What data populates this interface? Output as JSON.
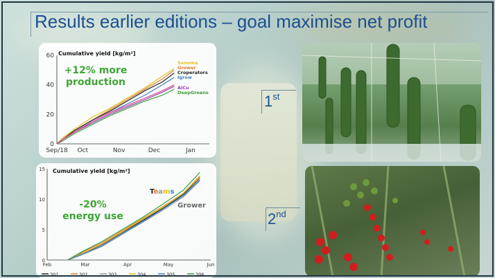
{
  "slide": {
    "title": "Results earlier editions – goal maximise net profit",
    "rank1": "1",
    "rank1_sup": "st",
    "rank2": "2",
    "rank2_sup": "nd",
    "photo1_icon": "cucumber-greenhouse-photo",
    "photo2_icon": "cherry-tomato-greenhouse-photo"
  },
  "chart_data": [
    {
      "type": "line",
      "title": "Cumulative yield [kg/m²]",
      "annotation": "+12% more production",
      "annotation_lines": [
        "+12% more",
        "production"
      ],
      "xlabel": "",
      "ylabel": "",
      "ylim": [
        0,
        60
      ],
      "yticks": [
        0,
        20,
        40,
        60
      ],
      "xlim": [
        0,
        130
      ],
      "xticks": [
        {
          "label": "Sep/18",
          "x": 0
        },
        {
          "label": "Oct",
          "x": 22
        },
        {
          "label": "Nov",
          "x": 53
        },
        {
          "label": "Dec",
          "x": 83
        },
        {
          "label": "Jan",
          "x": 114
        }
      ],
      "grid": false,
      "legend": "top-right",
      "series": [
        {
          "name": "Sonoma",
          "color": "#e0c21c",
          "x": [
            0,
            5,
            15,
            30,
            45,
            60,
            75,
            90,
            100
          ],
          "values": [
            0,
            4,
            10,
            18,
            24,
            31,
            38,
            46,
            51
          ]
        },
        {
          "name": "Grower",
          "color": "#e07b2c",
          "x": [
            0,
            5,
            15,
            30,
            45,
            60,
            75,
            90,
            100
          ],
          "values": [
            0,
            3,
            9,
            16,
            23,
            30,
            37,
            44,
            50
          ]
        },
        {
          "name": "Croperators",
          "color": "#222222",
          "x": [
            0,
            5,
            15,
            30,
            45,
            60,
            75,
            90,
            100
          ],
          "values": [
            0,
            3,
            9,
            16,
            22,
            29,
            36,
            42,
            48
          ]
        },
        {
          "name": "Igrow",
          "color": "#3f7fc4",
          "x": [
            0,
            5,
            15,
            30,
            45,
            60,
            75,
            90,
            100
          ],
          "values": [
            0,
            3,
            8,
            15,
            21,
            27,
            33,
            40,
            45
          ]
        },
        {
          "name": "AiCu",
          "color": "#8e3fb0",
          "x": [
            0,
            5,
            15,
            30,
            45,
            60,
            75,
            90,
            100
          ],
          "values": [
            0,
            3,
            8,
            14,
            20,
            25,
            30,
            35,
            39
          ]
        },
        {
          "name": "DeepGreens",
          "color": "#3e9a3a",
          "x": [
            0,
            5,
            15,
            30,
            45,
            60,
            75,
            90,
            100
          ],
          "values": [
            0,
            2,
            7,
            13,
            19,
            24,
            29,
            33,
            37
          ]
        },
        {
          "name": "",
          "color": "#e0468c",
          "x": [
            0,
            5,
            15,
            30,
            45,
            60,
            75,
            90,
            100
          ],
          "values": [
            0,
            3,
            8,
            15,
            21,
            26,
            31,
            36,
            40
          ]
        }
      ]
    },
    {
      "type": "line",
      "title": "Cumulative yield [kg/m²]",
      "annotation": "-20% energy use",
      "annotation_lines": [
        "-20%",
        "energy use"
      ],
      "label_teams": "Teams",
      "label_grower": "Grower",
      "xlabel": "",
      "ylabel": "",
      "ylim": [
        0,
        15
      ],
      "yticks": [
        0,
        5,
        10,
        15
      ],
      "xlim": [
        0,
        120
      ],
      "xticks": [
        {
          "label": "Feb",
          "x": 0
        },
        {
          "label": "Mar",
          "x": 28
        },
        {
          "label": "Apr",
          "x": 59
        },
        {
          "label": "May",
          "x": 89
        },
        {
          "label": "Jun",
          "x": 120
        }
      ],
      "grid": false,
      "legend": "bottom",
      "series": [
        {
          "name": "301",
          "color": "#222222",
          "x": [
            15,
            25,
            40,
            55,
            70,
            85,
            100,
            112
          ],
          "values": [
            0,
            1,
            2.5,
            4.5,
            6.5,
            8.5,
            10.8,
            13.5
          ]
        },
        {
          "name": "302",
          "color": "#e07b2c",
          "x": [
            15,
            25,
            40,
            55,
            70,
            85,
            100,
            112
          ],
          "values": [
            0,
            1.2,
            2.8,
            4.8,
            6.8,
            8.8,
            11,
            13.8
          ]
        },
        {
          "name": "303",
          "color": "#999999",
          "x": [
            15,
            25,
            40,
            55,
            70,
            85,
            100,
            112
          ],
          "values": [
            0,
            0.8,
            2.2,
            4.2,
            6.2,
            8.2,
            10.4,
            13
          ]
        },
        {
          "name": "304",
          "color": "#e0c21c",
          "x": [
            15,
            25,
            40,
            55,
            70,
            85,
            100,
            112
          ],
          "values": [
            0,
            1,
            2.6,
            4.6,
            6.7,
            8.7,
            11,
            13.6
          ]
        },
        {
          "name": "305",
          "color": "#3f7fc4",
          "x": [
            15,
            25,
            40,
            55,
            70,
            85,
            100,
            112
          ],
          "values": [
            0,
            0.9,
            2.3,
            4.3,
            6.3,
            8.4,
            10.6,
            13.2
          ]
        },
        {
          "name": "306",
          "color": "#3e9a3a",
          "x": [
            15,
            25,
            40,
            55,
            70,
            85,
            100,
            112
          ],
          "values": [
            0,
            1.3,
            3,
            5,
            7,
            9.2,
            11.5,
            14.4
          ]
        }
      ]
    }
  ]
}
